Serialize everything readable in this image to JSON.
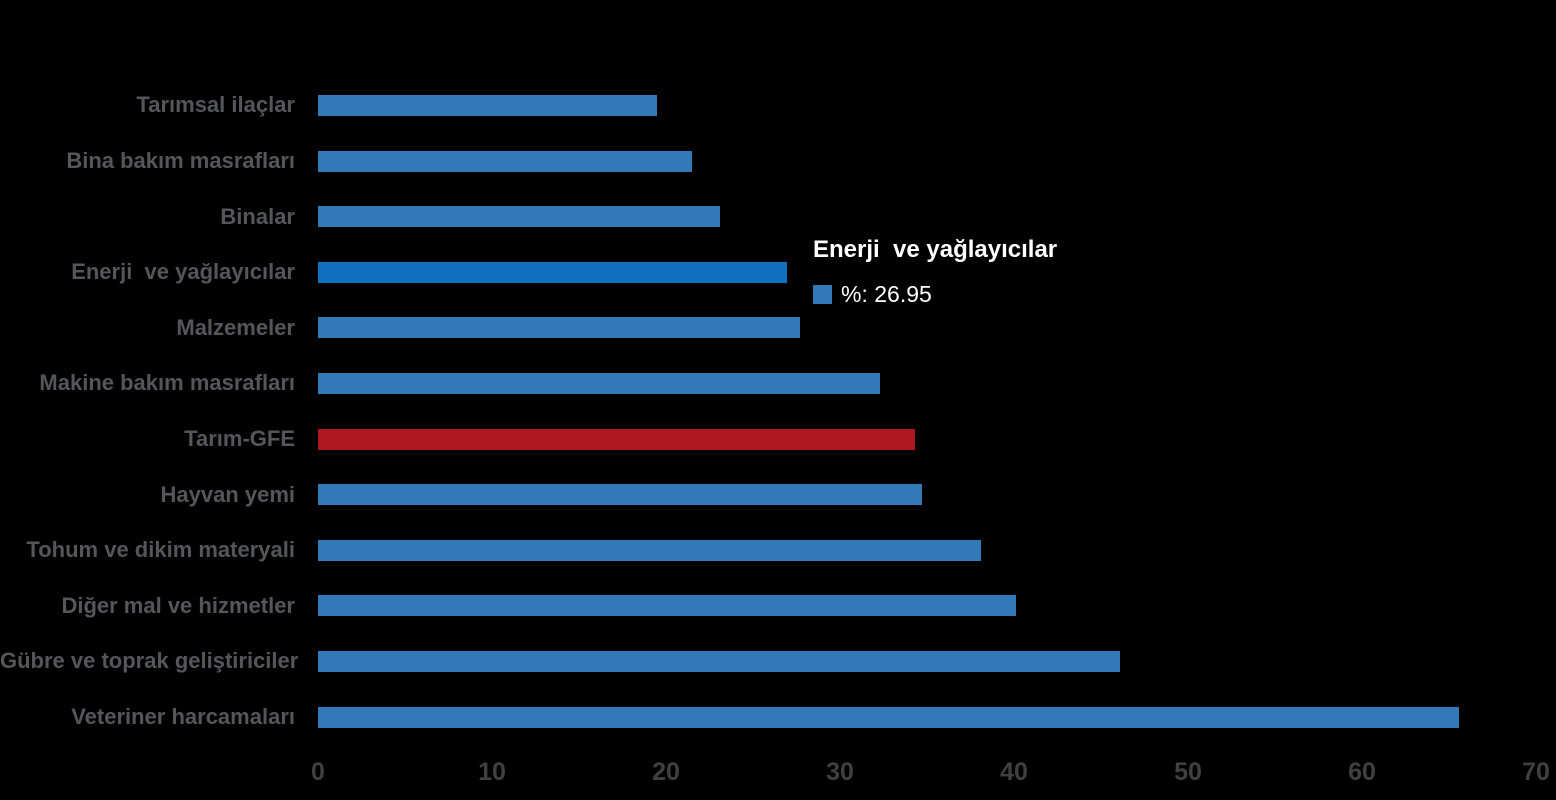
{
  "chart_data": {
    "type": "bar",
    "orientation": "horizontal",
    "title": "",
    "xlabel": "",
    "ylabel": "",
    "xlim": [
      0,
      70
    ],
    "xticks": [
      0,
      10,
      20,
      30,
      40,
      50,
      60,
      70
    ],
    "grid": false,
    "legend_position": "none",
    "categories": [
      "Tarımsal ilaçlar",
      "Bina bakım masrafları",
      "Binalar",
      "Enerji  ve yağlayıcılar",
      "Malzemeler",
      "Makine bakım masrafları",
      "Tarım-GFE",
      "Hayvan yemi",
      "Tohum ve dikim materyali",
      "Diğer mal ve hizmetler",
      "Gübre ve toprak geliştiriciler",
      "Veteriner harcamaları"
    ],
    "values": [
      19.5,
      21.5,
      23.1,
      26.95,
      27.7,
      32.3,
      34.3,
      34.7,
      38.1,
      40.1,
      46.1,
      65.6
    ],
    "bar_styles": [
      "normal",
      "normal",
      "normal",
      "highlight",
      "normal",
      "normal",
      "emphasis",
      "normal",
      "normal",
      "normal",
      "normal",
      "normal"
    ],
    "colors": {
      "normal": "#3279B8",
      "highlight": "#1171C1",
      "emphasis": "#B0161F",
      "label_text": "#54565A",
      "tick_text": "#3F4040",
      "background": "#000000"
    }
  },
  "tooltip": {
    "title": "Enerji  ve yağlayıcılar",
    "value_label": "%: 26.95",
    "swatch_color": "#3279B8",
    "text_color": "#FFFFFF"
  }
}
